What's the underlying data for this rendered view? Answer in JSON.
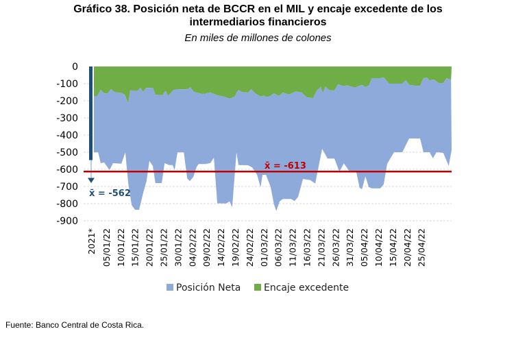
{
  "chart_data": {
    "type": "area",
    "title": "Gráfico 38. Posición neta de BCCR en el MIL y encaje excedente de los intermediarios financieros",
    "title_line1": "Gráfico 38. Posición neta de BCCR en el MIL y encaje excedente de los",
    "title_line2": "intermediarios financieros",
    "subtitle": "En miles de millones de colones",
    "xlabel": "",
    "ylabel": "",
    "ylim": [
      -900,
      0
    ],
    "yticks": [
      "0",
      "-100",
      "-200",
      "-300",
      "-400",
      "-500",
      "-600",
      "-700",
      "-800",
      "-900"
    ],
    "ytick_values": [
      0,
      -100,
      -200,
      -300,
      -400,
      -500,
      -600,
      -700,
      -800,
      -900
    ],
    "xticks": [
      "2021*",
      "05/01/22",
      "10/01/22",
      "15/01/22",
      "20/01/22",
      "25/01/22",
      "30/01/22",
      "04/02/22",
      "09/02/22",
      "14/02/22",
      "19/02/22",
      "24/02/22",
      "01/03/22",
      "06/03/22",
      "11/03/22",
      "16/03/22",
      "21/03/22",
      "26/03/22",
      "31/03/22",
      "05/04/22",
      "10/04/22",
      "15/04/22",
      "20/04/22",
      "25/04/22"
    ],
    "xtick_days": [
      0,
      5,
      10,
      15,
      20,
      25,
      30,
      35,
      40,
      45,
      50,
      55,
      60,
      65,
      70,
      75,
      80,
      85,
      90,
      95,
      100,
      105,
      110,
      115
    ],
    "x_unit": "day of year 2022 (approx.)",
    "grid": true,
    "legend": "bottom",
    "series": [
      {
        "name": "Posición Neta",
        "color": "#8eaadb",
        "note": "stacked below Encaje excedente; lower boundary (cumulative)",
        "points": [
          [
            0.7,
            -501
          ],
          [
            2.2,
            -501
          ],
          [
            3.1,
            -564
          ],
          [
            4.3,
            -560
          ],
          [
            6.2,
            -604
          ],
          [
            7.4,
            -564
          ],
          [
            10.3,
            -567
          ],
          [
            11.7,
            -501
          ],
          [
            12.7,
            -680
          ],
          [
            13.9,
            -808
          ],
          [
            15.1,
            -836
          ],
          [
            16.5,
            -836
          ],
          [
            17.9,
            -740
          ],
          [
            19.1,
            -668
          ],
          [
            20.1,
            -551
          ],
          [
            21.3,
            -580
          ],
          [
            22.2,
            -680
          ],
          [
            24.4,
            -680
          ],
          [
            25.4,
            -564
          ],
          [
            27.0,
            -575
          ],
          [
            28.2,
            -575
          ],
          [
            28.9,
            -604
          ],
          [
            29.9,
            -501
          ],
          [
            32.1,
            -501
          ],
          [
            33.3,
            -653
          ],
          [
            34.2,
            -669
          ],
          [
            35.4,
            -645
          ],
          [
            36.6,
            -585
          ],
          [
            37.3,
            -569
          ],
          [
            39.7,
            -569
          ],
          [
            41.4,
            -563
          ],
          [
            42.6,
            -532
          ],
          [
            43.8,
            -798
          ],
          [
            46.9,
            -799
          ],
          [
            48.1,
            -787
          ],
          [
            49.0,
            -821
          ],
          [
            50.5,
            -501
          ],
          [
            51.2,
            -575
          ],
          [
            54.5,
            -576
          ],
          [
            56.0,
            -589
          ],
          [
            57.7,
            -632
          ],
          [
            58.9,
            -705
          ],
          [
            59.6,
            -632
          ],
          [
            60.8,
            -632
          ],
          [
            62.4,
            -700
          ],
          [
            63.6,
            -804
          ],
          [
            64.4,
            -843
          ],
          [
            65.6,
            -786
          ],
          [
            66.7,
            -773
          ],
          [
            69.6,
            -773
          ],
          [
            70.8,
            -785
          ],
          [
            72.0,
            -761
          ],
          [
            73.7,
            -656
          ],
          [
            76.3,
            -663
          ],
          [
            78.0,
            -683
          ],
          [
            80.4,
            -480
          ],
          [
            82.3,
            -537
          ],
          [
            84.7,
            -537
          ],
          [
            86.4,
            -613
          ],
          [
            88.0,
            -565
          ],
          [
            90.0,
            -613
          ],
          [
            92.3,
            -613
          ],
          [
            93.5,
            -708
          ],
          [
            94.3,
            -716
          ],
          [
            95.5,
            -641
          ],
          [
            96.7,
            -704
          ],
          [
            97.8,
            -711
          ],
          [
            100.7,
            -711
          ],
          [
            101.9,
            -688
          ],
          [
            103.1,
            -568
          ],
          [
            105.5,
            -500
          ],
          [
            108.4,
            -500
          ],
          [
            110.8,
            -420
          ],
          [
            114.6,
            -420
          ],
          [
            115.8,
            -500
          ],
          [
            117.9,
            -500
          ],
          [
            119.1,
            -535
          ],
          [
            120.3,
            -500
          ],
          [
            122.7,
            -504
          ],
          [
            124.6,
            -580
          ],
          [
            125.6,
            -487
          ]
        ]
      },
      {
        "name": "Encaje excedente",
        "color": "#70ad47",
        "points": [
          [
            0.7,
            -172
          ],
          [
            1.9,
            -172
          ],
          [
            3.1,
            -136
          ],
          [
            4.3,
            -157
          ],
          [
            5.5,
            -157
          ],
          [
            6.7,
            -132
          ],
          [
            7.9,
            -149
          ],
          [
            10.5,
            -155
          ],
          [
            11.5,
            -165
          ],
          [
            12.7,
            -215
          ],
          [
            13.4,
            -139
          ],
          [
            15.8,
            -143
          ],
          [
            17.0,
            -124
          ],
          [
            17.9,
            -150
          ],
          [
            18.9,
            -125
          ],
          [
            21.3,
            -124
          ],
          [
            22.2,
            -164
          ],
          [
            24.6,
            -168
          ],
          [
            25.8,
            -141
          ],
          [
            26.6,
            -173
          ],
          [
            28.5,
            -137
          ],
          [
            30.1,
            -133
          ],
          [
            33.3,
            -133
          ],
          [
            34.4,
            -121
          ],
          [
            35.6,
            -148
          ],
          [
            38.0,
            -158
          ],
          [
            39.7,
            -158
          ],
          [
            41.4,
            -152
          ],
          [
            43.8,
            -168
          ],
          [
            46.2,
            -176
          ],
          [
            48.1,
            -187
          ],
          [
            49.8,
            -177
          ],
          [
            51.2,
            -136
          ],
          [
            52.4,
            -149
          ],
          [
            54.5,
            -152
          ],
          [
            55.7,
            -132
          ],
          [
            56.9,
            -155
          ],
          [
            58.9,
            -176
          ],
          [
            60.0,
            -170
          ],
          [
            61.2,
            -178
          ],
          [
            62.4,
            -170
          ],
          [
            63.6,
            -157
          ],
          [
            65.3,
            -172
          ],
          [
            66.7,
            -152
          ],
          [
            68.9,
            -164
          ],
          [
            71.3,
            -145
          ],
          [
            73.2,
            -152
          ],
          [
            75.1,
            -180
          ],
          [
            77.3,
            -184
          ],
          [
            78.5,
            -141
          ],
          [
            79.9,
            -119
          ],
          [
            80.6,
            -155
          ],
          [
            81.6,
            -117
          ],
          [
            82.8,
            -137
          ],
          [
            84.7,
            -140
          ],
          [
            85.9,
            -104
          ],
          [
            87.6,
            -113
          ],
          [
            89.2,
            -111
          ],
          [
            91.1,
            -120
          ],
          [
            92.3,
            -120
          ],
          [
            94.3,
            -107
          ],
          [
            95.5,
            -120
          ],
          [
            96.7,
            -111
          ],
          [
            97.8,
            -68
          ],
          [
            100.7,
            -68
          ],
          [
            101.9,
            -63
          ],
          [
            103.8,
            -100
          ],
          [
            108.4,
            -100
          ],
          [
            109.6,
            -80
          ],
          [
            110.8,
            -107
          ],
          [
            112.2,
            -110
          ],
          [
            113.4,
            -113
          ],
          [
            114.6,
            -113
          ],
          [
            115.8,
            -68
          ],
          [
            117.0,
            -65
          ],
          [
            117.9,
            -81
          ],
          [
            119.4,
            -76
          ],
          [
            121.1,
            -96
          ],
          [
            122.7,
            -96
          ],
          [
            123.9,
            -68
          ],
          [
            125.4,
            -77
          ]
        ]
      }
    ],
    "annotations": {
      "mean_2021_label": "x̄ = -562",
      "mean_2021_value": -562,
      "mean_2021_color": "#1f4e79",
      "mean_2022_label": "x̄ = -613",
      "mean_2022_value": -613,
      "mean_2022_color": "#c00000"
    }
  },
  "footer": "Fuente: Banco Central de Costa Rica."
}
